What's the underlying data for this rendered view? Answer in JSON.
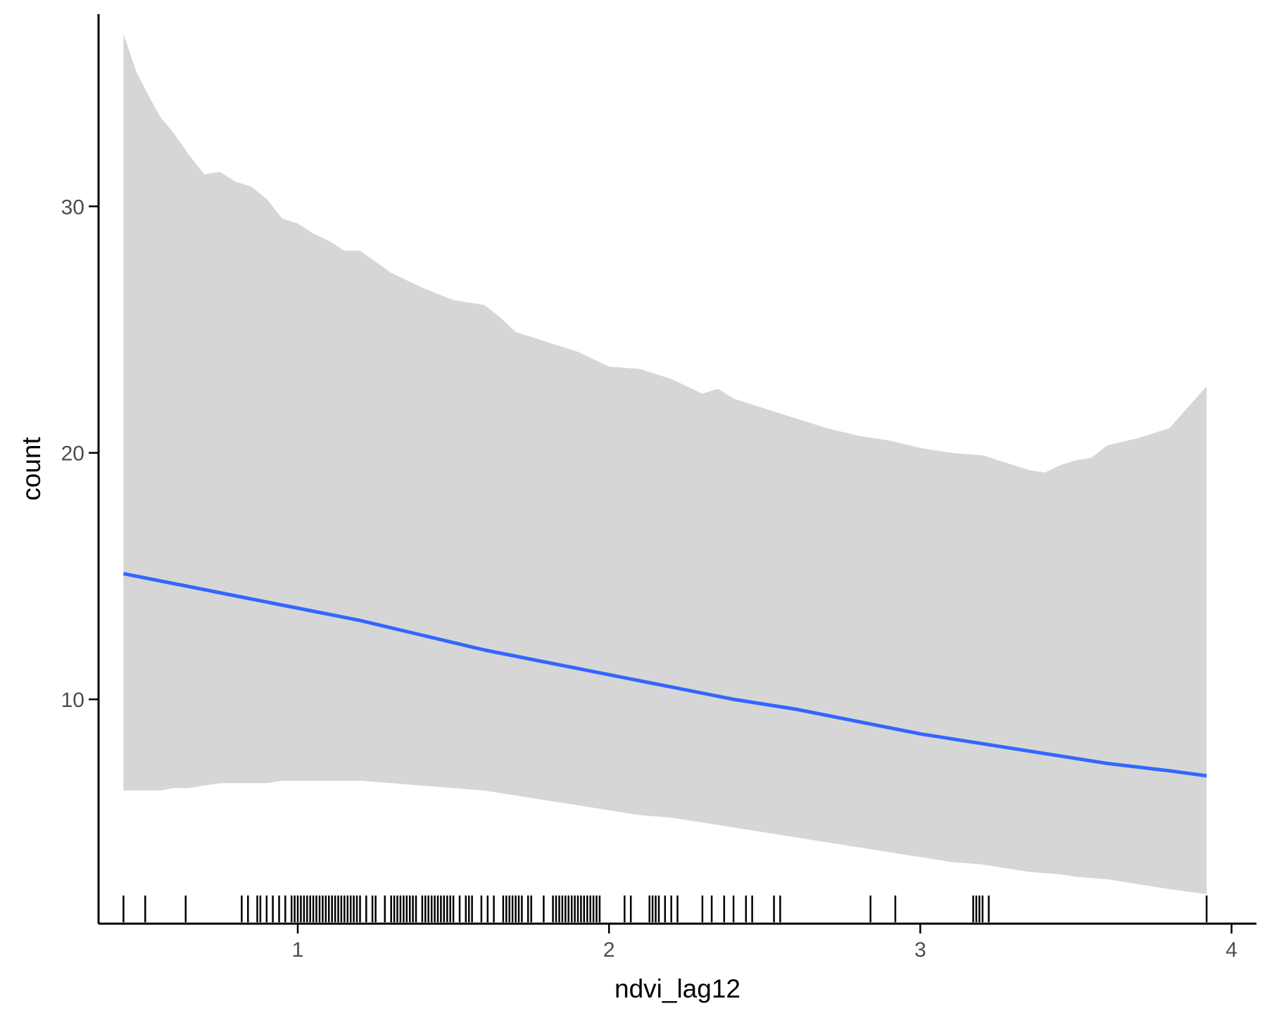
{
  "chart_data": {
    "type": "line",
    "title": "",
    "xlabel": "ndvi_lag12",
    "ylabel": "count",
    "xlim": [
      0.36,
      4.08
    ],
    "ylim": [
      0.9,
      37.8
    ],
    "x_ticks": [
      {
        "value": 1,
        "label": "1"
      },
      {
        "value": 2,
        "label": "2"
      },
      {
        "value": 3,
        "label": "3"
      },
      {
        "value": 4,
        "label": "4"
      }
    ],
    "y_ticks": [
      {
        "value": 10,
        "label": "10"
      },
      {
        "value": 20,
        "label": "20"
      },
      {
        "value": 30,
        "label": "30"
      }
    ],
    "grid": false,
    "legend": "none",
    "colors": {
      "fit_line": "#3366FF",
      "ribbon": "#D6D6D6",
      "rug": "#000000",
      "axis": "#000000",
      "tick_label": "#4D4D4D"
    },
    "series": [
      {
        "kind": "fit",
        "x": [
          0.44,
          0.6,
          0.8,
          1.0,
          1.2,
          1.4,
          1.6,
          1.8,
          2.0,
          2.2,
          2.4,
          2.6,
          2.8,
          3.0,
          3.2,
          3.4,
          3.6,
          3.8,
          3.92
        ],
        "values": [
          15.1,
          14.7,
          14.2,
          13.7,
          13.2,
          12.6,
          12.0,
          11.5,
          11.0,
          10.5,
          10.0,
          9.6,
          9.1,
          8.6,
          8.2,
          7.8,
          7.4,
          7.1,
          6.9
        ]
      },
      {
        "kind": "confidence_band",
        "x": [
          0.44,
          0.48,
          0.52,
          0.56,
          0.6,
          0.65,
          0.7,
          0.75,
          0.8,
          0.85,
          0.9,
          0.95,
          1.0,
          1.05,
          1.1,
          1.15,
          1.2,
          1.3,
          1.4,
          1.5,
          1.6,
          1.65,
          1.7,
          1.8,
          1.9,
          2.0,
          2.1,
          2.2,
          2.3,
          2.35,
          2.4,
          2.5,
          2.6,
          2.7,
          2.8,
          2.9,
          3.0,
          3.1,
          3.2,
          3.3,
          3.35,
          3.4,
          3.45,
          3.5,
          3.55,
          3.6,
          3.7,
          3.8,
          3.92
        ],
        "upper": [
          37.0,
          35.5,
          34.5,
          33.6,
          33.0,
          32.1,
          31.3,
          31.4,
          31.0,
          30.8,
          30.3,
          29.5,
          29.3,
          28.9,
          28.6,
          28.2,
          28.2,
          27.3,
          26.7,
          26.2,
          26.0,
          25.5,
          24.9,
          24.5,
          24.1,
          23.5,
          23.4,
          23.0,
          22.4,
          22.6,
          22.2,
          21.8,
          21.4,
          21.0,
          20.7,
          20.5,
          20.2,
          20.0,
          19.9,
          19.5,
          19.3,
          19.2,
          19.5,
          19.7,
          19.8,
          20.3,
          20.6,
          21.0,
          22.7
        ],
        "lower": [
          6.3,
          6.3,
          6.3,
          6.3,
          6.4,
          6.4,
          6.5,
          6.6,
          6.6,
          6.6,
          6.6,
          6.7,
          6.7,
          6.7,
          6.7,
          6.7,
          6.7,
          6.6,
          6.5,
          6.4,
          6.3,
          6.2,
          6.1,
          5.9,
          5.7,
          5.5,
          5.3,
          5.2,
          5.0,
          4.9,
          4.8,
          4.6,
          4.4,
          4.2,
          4.0,
          3.8,
          3.6,
          3.4,
          3.3,
          3.1,
          3.0,
          2.95,
          2.9,
          2.8,
          2.75,
          2.7,
          2.5,
          2.3,
          2.1
        ]
      }
    ],
    "rug_x": [
      0.44,
      0.51,
      0.64,
      0.82,
      0.84,
      0.87,
      0.88,
      0.9,
      0.92,
      0.94,
      0.96,
      0.98,
      0.99,
      1.0,
      1.01,
      1.02,
      1.03,
      1.04,
      1.05,
      1.06,
      1.07,
      1.08,
      1.09,
      1.1,
      1.11,
      1.12,
      1.13,
      1.14,
      1.15,
      1.16,
      1.17,
      1.18,
      1.19,
      1.2,
      1.22,
      1.24,
      1.25,
      1.28,
      1.3,
      1.31,
      1.32,
      1.33,
      1.34,
      1.35,
      1.36,
      1.37,
      1.38,
      1.4,
      1.41,
      1.42,
      1.43,
      1.44,
      1.45,
      1.46,
      1.47,
      1.48,
      1.49,
      1.5,
      1.52,
      1.54,
      1.55,
      1.56,
      1.59,
      1.61,
      1.63,
      1.66,
      1.67,
      1.68,
      1.69,
      1.7,
      1.71,
      1.72,
      1.74,
      1.75,
      1.79,
      1.82,
      1.83,
      1.84,
      1.85,
      1.86,
      1.87,
      1.88,
      1.89,
      1.9,
      1.91,
      1.92,
      1.93,
      1.94,
      1.95,
      1.96,
      1.97,
      2.05,
      2.07,
      2.13,
      2.14,
      2.15,
      2.16,
      2.18,
      2.2,
      2.22,
      2.3,
      2.33,
      2.37,
      2.4,
      2.44,
      2.46,
      2.53,
      2.55,
      2.84,
      2.92,
      3.17,
      3.18,
      3.19,
      3.2,
      3.22,
      3.92
    ]
  }
}
